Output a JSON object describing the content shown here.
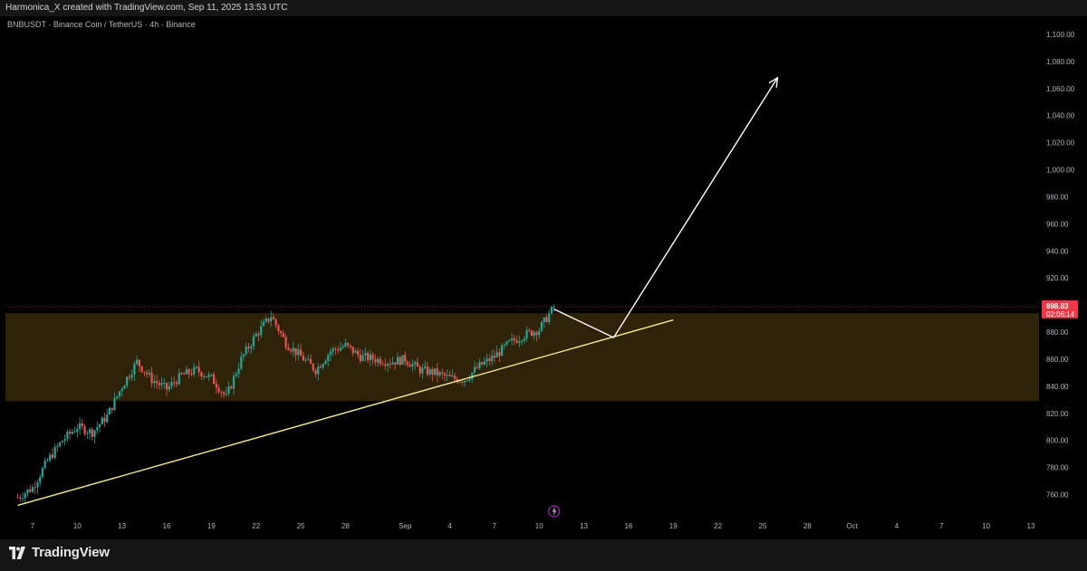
{
  "header": {
    "attribution": "Harmonica_X created with TradingView.com, Sep 11, 2025 13:53 UTC"
  },
  "chart": {
    "symbol_line": "BNBUSDT · Binance Coin / TetherUS · 4h · Binance",
    "current_price": "898.83",
    "countdown": "02:06:14",
    "colors": {
      "up": "#26a69a",
      "down": "#ef5350",
      "zone": "#2e2308",
      "trendline": "#f7e98e",
      "projection": "#ffffff",
      "price_tag": "#f23645"
    }
  },
  "chart_data": {
    "type": "candlestick",
    "title": "BNBUSDT · Binance Coin / TetherUS · 4h · Binance",
    "y_axis": {
      "ticks": [
        "1,100.00",
        "1,080.00",
        "1,060.00",
        "1,040.00",
        "1,020.00",
        "1,000.00",
        "980.00",
        "960.00",
        "940.00",
        "920.00",
        "880.00",
        "860.00",
        "840.00",
        "820.00",
        "800.00",
        "780.00",
        "760.00"
      ],
      "tick_values": [
        1100,
        1080,
        1060,
        1040,
        1020,
        1000,
        980,
        960,
        940,
        920,
        880,
        860,
        840,
        820,
        800,
        780,
        760
      ],
      "ylim": [
        748,
        1110
      ]
    },
    "x_axis": {
      "ticks": [
        "7",
        "10",
        "13",
        "16",
        "19",
        "22",
        "25",
        "28",
        "Sep",
        "4",
        "7",
        "10",
        "13",
        "16",
        "19",
        "22",
        "25",
        "28",
        "Oct",
        "4",
        "7",
        "10",
        "13"
      ],
      "tick_dates": [
        "2025-08-07",
        "2025-08-10",
        "2025-08-13",
        "2025-08-16",
        "2025-08-19",
        "2025-08-22",
        "2025-08-25",
        "2025-08-28",
        "2025-09-01",
        "2025-09-04",
        "2025-09-07",
        "2025-09-10",
        "2025-09-13",
        "2025-09-16",
        "2025-09-19",
        "2025-09-22",
        "2025-09-25",
        "2025-09-28",
        "2025-10-01",
        "2025-10-04",
        "2025-10-07",
        "2025-10-10",
        "2025-10-13"
      ]
    },
    "price_path": [
      [
        "2025-08-06",
        758
      ],
      [
        "2025-08-07",
        765
      ],
      [
        "2025-08-08",
        785
      ],
      [
        "2025-08-09",
        800
      ],
      [
        "2025-08-10",
        810
      ],
      [
        "2025-08-11",
        806
      ],
      [
        "2025-08-12",
        818
      ],
      [
        "2025-08-13",
        840
      ],
      [
        "2025-08-14",
        858
      ],
      [
        "2025-08-15",
        845
      ],
      [
        "2025-08-16",
        838
      ],
      [
        "2025-08-17",
        848
      ],
      [
        "2025-08-18",
        852
      ],
      [
        "2025-08-19",
        846
      ],
      [
        "2025-08-20",
        832
      ],
      [
        "2025-08-21",
        860
      ],
      [
        "2025-08-22",
        878
      ],
      [
        "2025-08-23",
        892
      ],
      [
        "2025-08-24",
        872
      ],
      [
        "2025-08-25",
        862
      ],
      [
        "2025-08-26",
        852
      ],
      [
        "2025-08-27",
        866
      ],
      [
        "2025-08-28",
        870
      ],
      [
        "2025-08-29",
        862
      ],
      [
        "2025-08-30",
        860
      ],
      [
        "2025-08-31",
        858
      ],
      [
        "2025-09-01",
        860
      ],
      [
        "2025-09-02",
        852
      ],
      [
        "2025-09-03",
        850
      ],
      [
        "2025-09-04",
        846
      ],
      [
        "2025-09-05",
        845
      ],
      [
        "2025-09-06",
        855
      ],
      [
        "2025-09-07",
        862
      ],
      [
        "2025-09-08",
        872
      ],
      [
        "2025-09-09",
        878
      ],
      [
        "2025-09-10",
        882
      ],
      [
        "2025-09-11",
        898.83
      ]
    ],
    "resistance_zone": [
      829,
      894
    ],
    "trendline": [
      [
        "2025-08-06",
        752
      ],
      [
        "2025-09-19",
        889
      ]
    ],
    "projection": [
      [
        "2025-09-11",
        897
      ],
      [
        "2025-09-15",
        876
      ],
      [
        "2025-09-26",
        1068
      ]
    ],
    "last_price": 898.83
  }
}
